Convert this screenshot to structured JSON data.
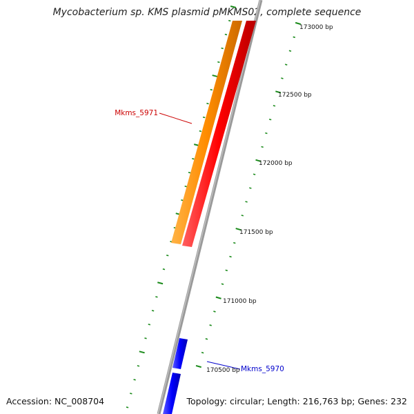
{
  "title": "Mycobacterium sp. KMS plasmid pMKMS02, complete sequence",
  "accession": "Accession: NC_008704",
  "summary": "Topology: circular; Length: 216,763 bp; Genes: 232",
  "ticks": [
    {
      "label": "173000 bp",
      "bp": 173000
    },
    {
      "label": "172500 bp",
      "bp": 172500
    },
    {
      "label": "172000 bp",
      "bp": 172000
    },
    {
      "label": "171500 bp",
      "bp": 171500
    },
    {
      "label": "171000 bp",
      "bp": 171000
    },
    {
      "label": "170500 bp",
      "bp": 170500
    }
  ],
  "genes": [
    {
      "name": "Mkms_5971",
      "color": "#cc0000"
    },
    {
      "name": "Mkms_5970",
      "color": "#0000cc"
    }
  ],
  "colors": {
    "backbone": "#8a8a8a",
    "tick": "#1a8a1a",
    "orange_feature": "#ff8c00",
    "red_feature": "#ff0000",
    "blue_feature": "#0000ff"
  }
}
